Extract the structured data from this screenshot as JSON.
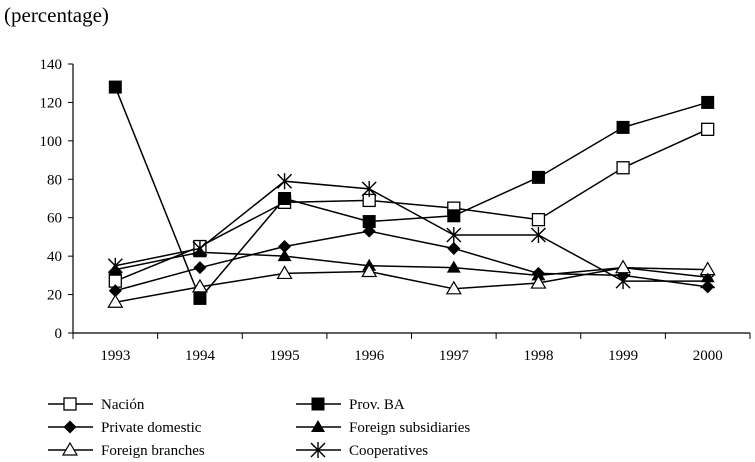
{
  "chart_data": {
    "type": "line",
    "unit_label": "(percentage)",
    "x": [
      "1993",
      "1994",
      "1995",
      "1996",
      "1997",
      "1998",
      "1999",
      "2000"
    ],
    "ylim": [
      0,
      140
    ],
    "yticks": [
      0,
      20,
      40,
      60,
      80,
      100,
      120,
      140
    ],
    "grid": false,
    "legend_placement": "bottom",
    "series": [
      {
        "name": "Nación",
        "marker": "open-square",
        "values": [
          27,
          45,
          68,
          69,
          65,
          59,
          86,
          106
        ]
      },
      {
        "name": "Prov. BA",
        "marker": "filled-square",
        "values": [
          128,
          18,
          70,
          58,
          61,
          81,
          107,
          120
        ]
      },
      {
        "name": "Private domestic",
        "marker": "filled-diamond",
        "values": [
          22,
          34,
          45,
          53,
          44,
          31,
          30,
          24
        ]
      },
      {
        "name": "Foreign subsidiaries",
        "marker": "filled-triangle",
        "values": [
          33,
          42,
          40,
          35,
          34,
          30,
          34,
          29
        ]
      },
      {
        "name": "Foreign branches",
        "marker": "open-triangle",
        "values": [
          16,
          24,
          31,
          32,
          23,
          26,
          34,
          33
        ]
      },
      {
        "name": "Cooperatives",
        "marker": "asterisk",
        "values": [
          35,
          44,
          79,
          75,
          51,
          51,
          27,
          27
        ]
      }
    ]
  }
}
